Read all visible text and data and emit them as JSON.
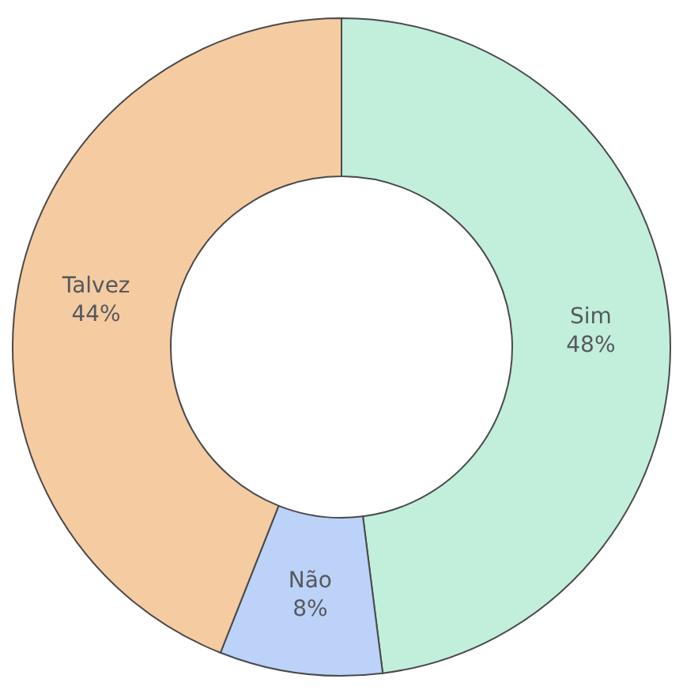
{
  "chart_data": {
    "type": "donut",
    "categories": [
      "Sim",
      "Não",
      "Talvez"
    ],
    "values": [
      48,
      8,
      44
    ],
    "colors": [
      "#c2eedc",
      "#bcd2f8",
      "#f5cba2"
    ],
    "value_labels": [
      "48%",
      "8%",
      "44%"
    ]
  }
}
